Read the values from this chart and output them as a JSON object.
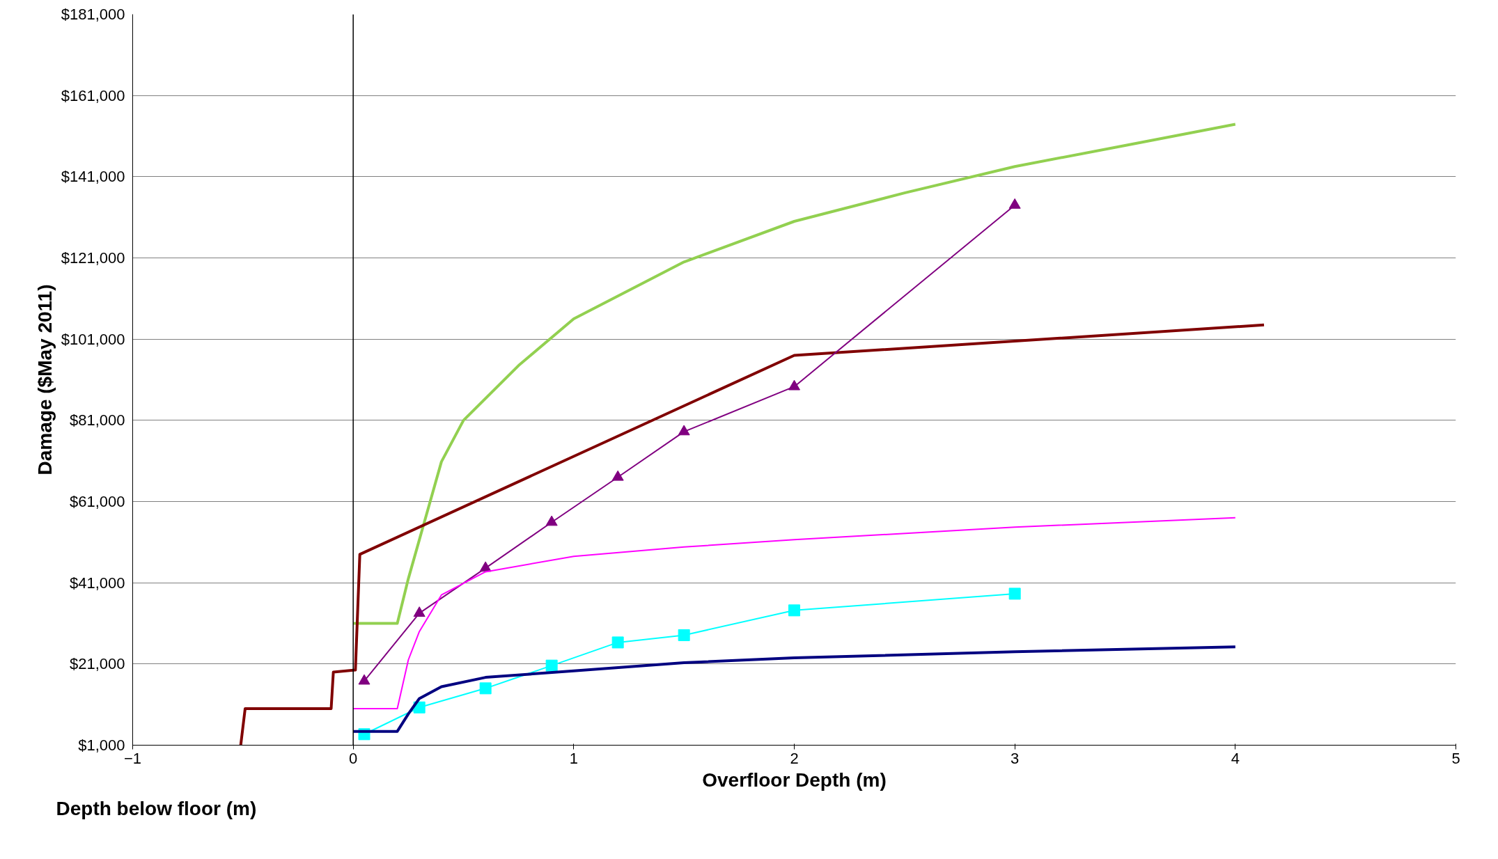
{
  "chart_data": {
    "type": "line",
    "ylabel": "Damage ($May 2011)",
    "xlabel": "Overfloor Depth (m)",
    "annotations": [
      "Depth below floor (m)"
    ],
    "xlim": [
      -1,
      5
    ],
    "xticks": [
      -1,
      0,
      1,
      2,
      3,
      4,
      5
    ],
    "ylim": [
      1000,
      181000
    ],
    "yticks": [
      {
        "value": 1000,
        "label": "$1,000"
      },
      {
        "value": 21000,
        "label": "$21,000"
      },
      {
        "value": 41000,
        "label": "$41,000"
      },
      {
        "value": 61000,
        "label": "$61,000"
      },
      {
        "value": 81000,
        "label": "$81,000"
      },
      {
        "value": 101000,
        "label": "$101,000"
      },
      {
        "value": 121000,
        "label": "$121,000"
      },
      {
        "value": 141000,
        "label": "$141,000"
      },
      {
        "value": 161000,
        "label": "$161,000"
      },
      {
        "value": 181000,
        "label": "$181,000"
      }
    ],
    "grid": "y",
    "ref_lines": [
      {
        "axis": "x",
        "value": 0,
        "color": "#000000"
      }
    ],
    "series": [
      {
        "color": "#92d050",
        "marker": "none",
        "x": [
          0,
          0.2,
          0.25,
          0.3,
          0.4,
          0.5,
          0.75,
          1,
          1.5,
          2,
          2.5,
          3,
          3.5,
          4
        ],
        "values": [
          31000,
          31000,
          42000,
          51600,
          70800,
          81000,
          94500,
          106000,
          120000,
          130000,
          137000,
          143500,
          148700,
          153900
        ]
      },
      {
        "color": "#800000",
        "marker": "none",
        "x": [
          -0.51,
          -0.49,
          -0.1,
          -0.09,
          0.01,
          0.03,
          2,
          3,
          4.13
        ],
        "values": [
          1000,
          10000,
          10000,
          19000,
          19500,
          48000,
          97000,
          100500,
          104500
        ]
      },
      {
        "color": "#800080",
        "marker": "triangle",
        "x": [
          0.05,
          0.3,
          0.6,
          0.9,
          1.2,
          1.5,
          2,
          3
        ],
        "values": [
          16800,
          33500,
          44600,
          55900,
          67000,
          78200,
          89300,
          134000
        ]
      },
      {
        "color": "#ff00ff",
        "marker": "none",
        "x": [
          0,
          0.2,
          0.25,
          0.3,
          0.4,
          0.6,
          1,
          1.5,
          2,
          3,
          4
        ],
        "values": [
          10000,
          10000,
          22000,
          29000,
          38000,
          43700,
          47500,
          49800,
          51600,
          54700,
          57000
        ]
      },
      {
        "color": "#00ffff",
        "marker": "square",
        "x": [
          0.05,
          0.3,
          0.6,
          0.9,
          1.2,
          1.5,
          2,
          3
        ],
        "values": [
          3700,
          10300,
          15000,
          20600,
          26300,
          28100,
          34200,
          38300
        ]
      },
      {
        "color": "#000080",
        "marker": "none",
        "x": [
          0,
          0.2,
          0.25,
          0.3,
          0.4,
          0.6,
          1,
          1.5,
          2,
          3,
          4
        ],
        "values": [
          4400,
          4400,
          8700,
          12500,
          15400,
          17700,
          19300,
          21300,
          22500,
          24000,
          25200
        ]
      }
    ]
  }
}
